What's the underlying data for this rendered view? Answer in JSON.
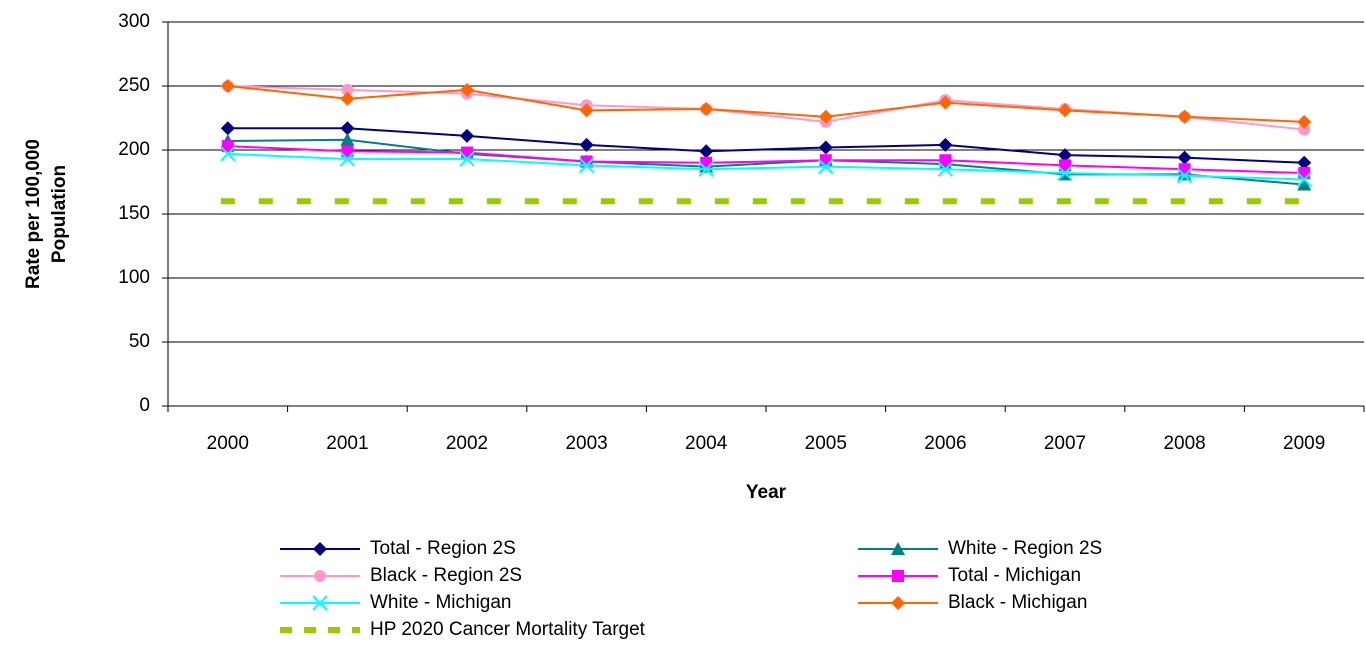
{
  "chart_data": {
    "type": "line",
    "x_label": "Year",
    "y_label": [
      "Rate per 100,000",
      "Population"
    ],
    "categories": [
      "2000",
      "2001",
      "2002",
      "2003",
      "2004",
      "2005",
      "2006",
      "2007",
      "2008",
      "2009"
    ],
    "ylim": [
      0,
      300
    ],
    "yticks": [
      0,
      50,
      100,
      150,
      200,
      250,
      300
    ],
    "grid": true,
    "series": [
      {
        "name": "Total - Region 2S",
        "color": "#000080",
        "marker": "diamond",
        "values": [
          217,
          217,
          211,
          204,
          199,
          202,
          204,
          196,
          194,
          190
        ]
      },
      {
        "name": "White - Region 2S",
        "color": "#008080",
        "marker": "triangle",
        "values": [
          207,
          208,
          197,
          191,
          187,
          192,
          189,
          181,
          181,
          173
        ]
      },
      {
        "name": "Black - Region 2S",
        "color": "#ff99cc",
        "marker": "circle",
        "values": [
          250,
          247,
          244,
          235,
          232,
          222,
          239,
          232,
          226,
          216
        ]
      },
      {
        "name": "Total - Michigan",
        "color": "#ff00ff",
        "marker": "square",
        "values": [
          203,
          199,
          198,
          191,
          190,
          192,
          192,
          188,
          185,
          182
        ]
      },
      {
        "name": "White - Michigan",
        "color": "#00ffff",
        "marker": "x",
        "values": [
          197,
          193,
          193,
          188,
          185,
          187,
          185,
          182,
          180,
          177
        ]
      },
      {
        "name": "Black - Michigan",
        "color": "#ff6600",
        "marker": "diamond",
        "values": [
          250,
          240,
          247,
          231,
          232,
          226,
          237,
          231,
          226,
          222
        ]
      },
      {
        "name": "HP 2020 Cancer Mortality Target",
        "color": "#99cc00",
        "marker": "none",
        "style": "dashed",
        "values": [
          160,
          160,
          160,
          160,
          160,
          160,
          160,
          160,
          160,
          160
        ]
      }
    ]
  }
}
